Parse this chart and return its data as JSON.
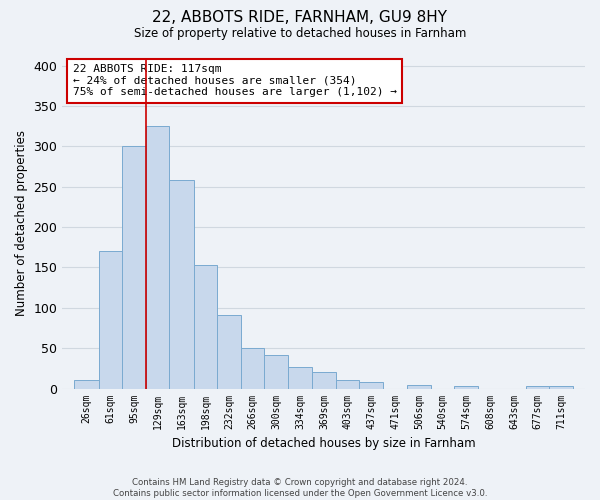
{
  "title": "22, ABBOTS RIDE, FARNHAM, GU9 8HY",
  "subtitle": "Size of property relative to detached houses in Farnham",
  "xlabel": "Distribution of detached houses by size in Farnham",
  "ylabel": "Number of detached properties",
  "bar_labels": [
    "26sqm",
    "61sqm",
    "95sqm",
    "129sqm",
    "163sqm",
    "198sqm",
    "232sqm",
    "266sqm",
    "300sqm",
    "334sqm",
    "369sqm",
    "403sqm",
    "437sqm",
    "471sqm",
    "506sqm",
    "540sqm",
    "574sqm",
    "608sqm",
    "643sqm",
    "677sqm",
    "711sqm"
  ],
  "bar_values": [
    10,
    170,
    300,
    325,
    258,
    153,
    91,
    50,
    42,
    27,
    20,
    10,
    8,
    0,
    5,
    0,
    3,
    0,
    0,
    3,
    3
  ],
  "bar_color": "#c8d8ec",
  "bar_edge_color": "#7aaad0",
  "grid_color": "#d0d8e0",
  "annotation_text": "22 ABBOTS RIDE: 117sqm\n← 24% of detached houses are smaller (354)\n75% of semi-detached houses are larger (1,102) →",
  "vline_color": "#cc0000",
  "ylim": [
    0,
    410
  ],
  "yticks": [
    0,
    50,
    100,
    150,
    200,
    250,
    300,
    350,
    400
  ],
  "footer1": "Contains HM Land Registry data © Crown copyright and database right 2024.",
  "footer2": "Contains public sector information licensed under the Open Government Licence v3.0.",
  "bin_edges": [
    26,
    61,
    95,
    129,
    163,
    198,
    232,
    266,
    300,
    334,
    369,
    403,
    437,
    471,
    506,
    540,
    574,
    608,
    643,
    677,
    711,
    745
  ],
  "annotation_box_color": "#ffffff",
  "annotation_box_edge": "#cc0000",
  "bg_color": "#eef2f7"
}
